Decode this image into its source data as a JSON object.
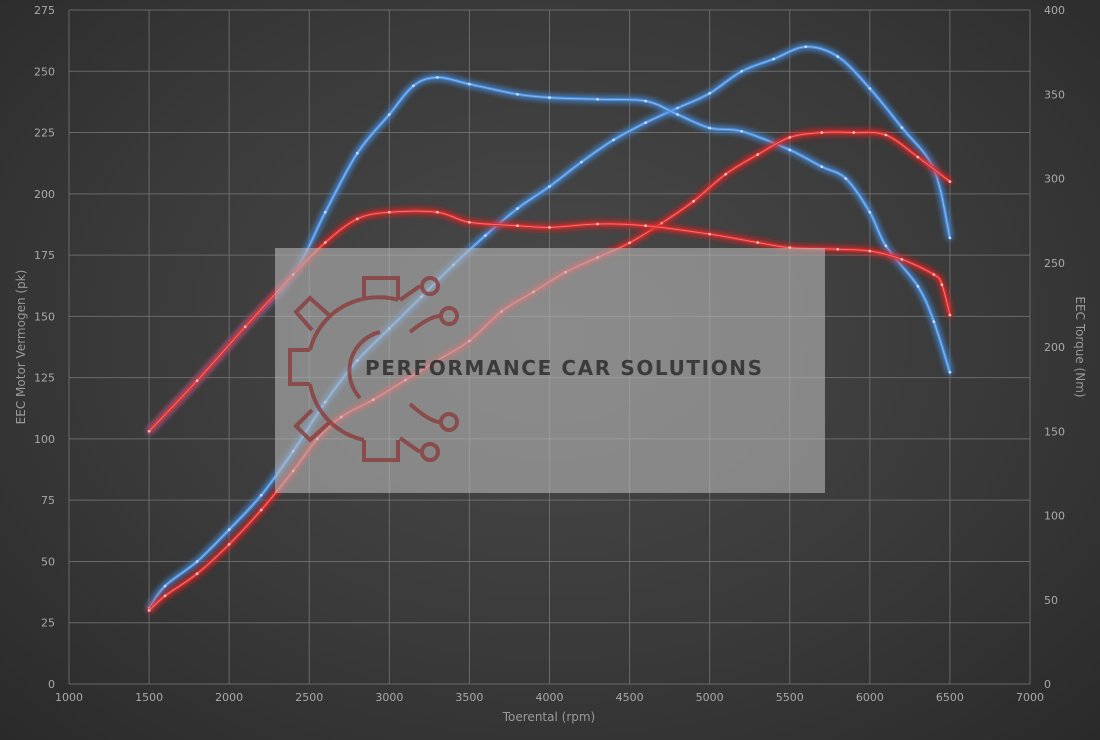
{
  "chart_data": {
    "type": "line",
    "xlabel": "Toerental (rpm)",
    "ylabel_left": "EEC Motor Vermogen (pk)",
    "ylabel_right": "EEC Torque (Nm)",
    "xlim": [
      1000,
      7000
    ],
    "ylim_left": [
      0,
      275
    ],
    "ylim_right": [
      0,
      400
    ],
    "x_ticks": [
      "1000",
      "1500",
      "2000",
      "2500",
      "3000",
      "3500",
      "4000",
      "4500",
      "5000",
      "5500",
      "6000",
      "6500",
      "7000"
    ],
    "y_left_ticks": [
      "0",
      "25",
      "50",
      "75",
      "100",
      "125",
      "150",
      "175",
      "200",
      "225",
      "250",
      "275"
    ],
    "y_right_ticks": [
      "0",
      "50",
      "100",
      "150",
      "200",
      "250",
      "300",
      "350",
      "400"
    ],
    "grid": true,
    "colors": {
      "tuned": "#4a8fe0",
      "stock": "#e02c2c"
    },
    "series": [
      {
        "axis": "left",
        "color": "tuned",
        "points": [
          [
            1500,
            31
          ],
          [
            1600,
            40
          ],
          [
            1800,
            50
          ],
          [
            2000,
            63
          ],
          [
            2200,
            77
          ],
          [
            2400,
            95
          ],
          [
            2600,
            115
          ],
          [
            2800,
            132
          ],
          [
            3000,
            145
          ],
          [
            3200,
            158
          ],
          [
            3400,
            171
          ],
          [
            3600,
            183
          ],
          [
            3800,
            194
          ],
          [
            4000,
            203
          ],
          [
            4200,
            213
          ],
          [
            4400,
            222
          ],
          [
            4600,
            229
          ],
          [
            4800,
            235
          ],
          [
            5000,
            241
          ],
          [
            5200,
            250
          ],
          [
            5400,
            255
          ],
          [
            5600,
            260
          ],
          [
            5800,
            256
          ],
          [
            6000,
            243
          ],
          [
            6200,
            227
          ],
          [
            6400,
            210
          ],
          [
            6500,
            182
          ]
        ]
      },
      {
        "axis": "right",
        "color": "tuned",
        "points": [
          [
            1500,
            150
          ],
          [
            1800,
            180
          ],
          [
            2100,
            212
          ],
          [
            2400,
            243
          ],
          [
            2600,
            280
          ],
          [
            2800,
            315
          ],
          [
            3000,
            338
          ],
          [
            3150,
            355
          ],
          [
            3300,
            360
          ],
          [
            3500,
            356
          ],
          [
            3800,
            350
          ],
          [
            4000,
            348
          ],
          [
            4300,
            347
          ],
          [
            4600,
            346
          ],
          [
            4800,
            338
          ],
          [
            5000,
            330
          ],
          [
            5200,
            328
          ],
          [
            5500,
            317
          ],
          [
            5700,
            307
          ],
          [
            5850,
            300
          ],
          [
            6000,
            280
          ],
          [
            6100,
            260
          ],
          [
            6300,
            236
          ],
          [
            6400,
            215
          ],
          [
            6500,
            185
          ]
        ]
      },
      {
        "axis": "left",
        "color": "stock",
        "points": [
          [
            1500,
            30
          ],
          [
            1600,
            36
          ],
          [
            1800,
            45
          ],
          [
            2000,
            57
          ],
          [
            2200,
            71
          ],
          [
            2400,
            87
          ],
          [
            2550,
            100
          ],
          [
            2700,
            109
          ],
          [
            2900,
            116
          ],
          [
            3100,
            124
          ],
          [
            3300,
            132
          ],
          [
            3500,
            140
          ],
          [
            3700,
            152
          ],
          [
            3900,
            160
          ],
          [
            4100,
            168
          ],
          [
            4300,
            174
          ],
          [
            4500,
            180
          ],
          [
            4700,
            188
          ],
          [
            4900,
            197
          ],
          [
            5100,
            208
          ],
          [
            5300,
            216
          ],
          [
            5500,
            223
          ],
          [
            5700,
            225
          ],
          [
            5900,
            225
          ],
          [
            6100,
            224
          ],
          [
            6300,
            215
          ],
          [
            6500,
            205
          ]
        ]
      },
      {
        "axis": "right",
        "color": "stock",
        "points": [
          [
            1500,
            150
          ],
          [
            1800,
            180
          ],
          [
            2100,
            212
          ],
          [
            2400,
            243
          ],
          [
            2600,
            262
          ],
          [
            2800,
            276
          ],
          [
            3000,
            280
          ],
          [
            3300,
            280
          ],
          [
            3500,
            274
          ],
          [
            3800,
            272
          ],
          [
            4000,
            271
          ],
          [
            4300,
            273
          ],
          [
            4600,
            272
          ],
          [
            5000,
            267
          ],
          [
            5300,
            262
          ],
          [
            5500,
            259
          ],
          [
            5800,
            258
          ],
          [
            6000,
            257
          ],
          [
            6200,
            252
          ],
          [
            6400,
            243
          ],
          [
            6450,
            237
          ],
          [
            6500,
            219
          ]
        ]
      }
    ]
  },
  "watermark": {
    "text": "PERFORMANCE CAR SOLUTIONS",
    "box_color": "#b8b8b8",
    "logo_color": "#8a3d3d"
  }
}
